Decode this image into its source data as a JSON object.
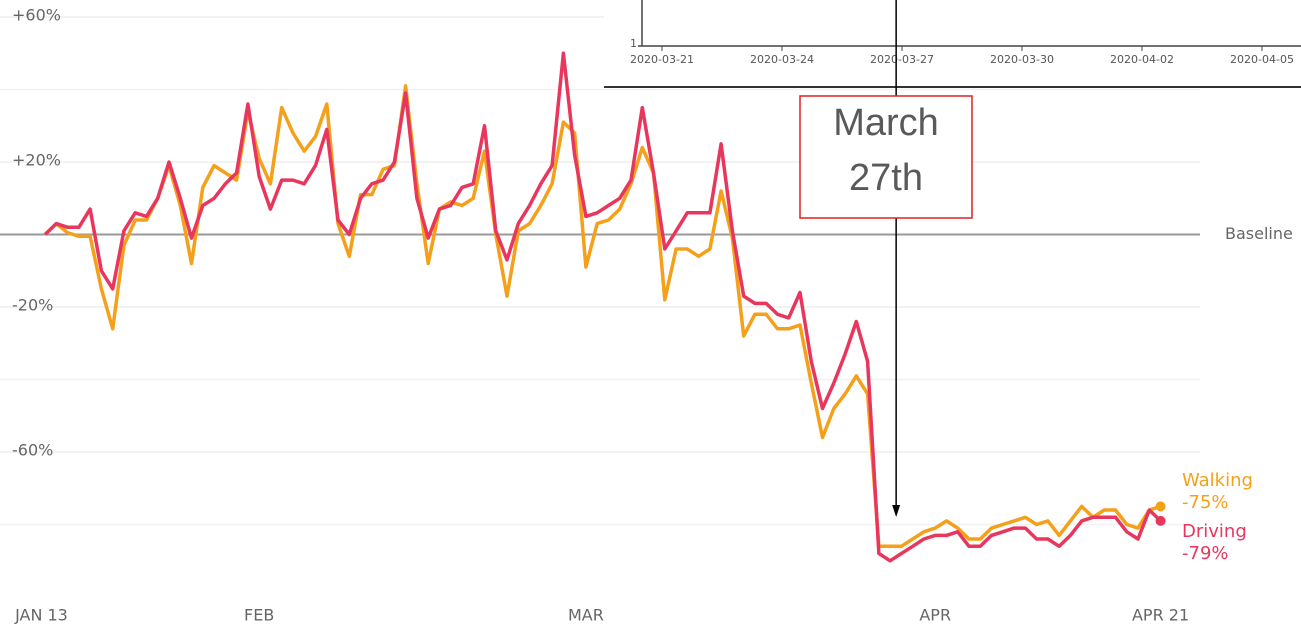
{
  "chart_data": {
    "type": "line",
    "x": [
      0,
      1,
      2,
      3,
      4,
      5,
      6,
      7,
      8,
      9,
      10,
      11,
      12,
      13,
      14,
      15,
      16,
      17,
      18,
      19,
      20,
      21,
      22,
      23,
      24,
      25,
      26,
      27,
      28,
      29,
      30,
      31,
      32,
      33,
      34,
      35,
      36,
      37,
      38,
      39,
      40,
      41,
      42,
      43,
      44,
      45,
      46,
      47,
      48,
      49,
      50,
      51,
      52,
      53,
      54,
      55,
      56,
      57,
      58,
      59,
      60,
      61,
      62,
      63,
      64,
      65,
      66,
      67,
      68,
      69,
      70,
      71,
      72,
      73,
      74,
      75,
      76,
      77,
      78,
      79,
      80,
      81,
      82,
      83,
      84,
      85,
      86,
      87,
      88,
      89,
      90,
      91,
      92,
      93,
      94,
      95,
      96,
      97,
      98,
      99
    ],
    "xlim": [
      -4,
      102.5
    ],
    "xticks": [
      {
        "value": 0,
        "label": "JAN 13"
      },
      {
        "value": 19,
        "label": "FEB"
      },
      {
        "value": 48,
        "label": "MAR"
      },
      {
        "value": 79,
        "label": "APR"
      },
      {
        "value": 99,
        "label": "APR 21"
      }
    ],
    "ylim": [
      -100,
      60
    ],
    "yticks": [
      {
        "value": 60,
        "label": "+60%"
      },
      {
        "value": 20,
        "label": "+20%"
      },
      {
        "value": -20,
        "label": "-20%"
      },
      {
        "value": -60,
        "label": "-60%"
      }
    ],
    "yminorticks": [
      40,
      -40,
      -80
    ],
    "baseline": {
      "value": 0,
      "label": "Baseline"
    },
    "grid": true,
    "series": [
      {
        "name": "Walking",
        "color": "#f5a01a",
        "values": [
          0,
          3,
          0.5,
          -0.5,
          -0.5,
          -15,
          -26,
          -3,
          4,
          4,
          10,
          19,
          8,
          -8,
          13,
          19,
          17,
          15,
          34,
          21,
          14,
          35,
          28,
          23,
          27,
          36,
          3,
          -6,
          11,
          11,
          18,
          19,
          41,
          14,
          -8,
          7,
          9,
          8,
          10,
          23,
          0,
          -17,
          1,
          3,
          8,
          14,
          31,
          28,
          -9,
          3,
          4,
          7,
          14,
          24,
          17,
          -18,
          -4,
          -4,
          -6,
          -4,
          12,
          -1,
          -28,
          -22,
          -22,
          -26,
          -26,
          -25,
          -41,
          -56,
          -48,
          -44,
          -39,
          -44,
          -86,
          -86,
          -86,
          -84,
          -82,
          -81,
          -79,
          -81,
          -84,
          -84,
          -81,
          -80,
          -79,
          -78,
          -80,
          -79,
          -83,
          -79,
          -75,
          -78,
          -76,
          -76,
          -80,
          -81,
          -76,
          -75
        ],
        "value_labels": [
          null,
          null,
          null,
          null,
          null,
          null,
          null,
          null,
          null,
          null,
          null,
          null,
          null,
          null,
          null,
          null,
          null,
          null,
          null,
          null,
          null,
          null,
          null,
          null,
          null,
          null,
          null,
          null,
          null,
          null,
          null,
          null,
          null,
          null,
          null,
          null,
          null,
          null,
          null,
          null,
          null,
          null,
          null,
          null,
          null,
          null,
          null,
          null,
          null,
          null,
          null,
          null,
          null,
          null,
          null,
          null,
          null,
          null,
          null,
          null,
          null,
          null,
          null,
          null,
          null,
          null,
          null,
          null,
          null,
          null,
          null,
          null,
          null,
          null,
          null,
          null,
          null,
          null,
          null,
          null,
          null,
          null,
          null,
          null,
          null,
          null,
          null,
          null,
          null,
          null,
          null,
          null,
          null,
          null,
          null,
          null,
          null,
          null,
          null,
          "-75%"
        ]
      },
      {
        "name": "Driving",
        "color": "#e8365d",
        "values": [
          0,
          3,
          2,
          2,
          7,
          -10,
          -15,
          1,
          6,
          5,
          10,
          20,
          10,
          -1,
          8,
          10,
          14,
          17,
          36,
          16,
          7,
          15,
          15,
          14,
          19,
          29,
          4,
          0,
          10,
          14,
          15,
          20,
          39,
          10,
          -1,
          7,
          8,
          13,
          14,
          30,
          1,
          -7,
          3,
          8,
          14,
          19,
          50,
          22,
          5,
          6,
          8,
          10,
          15,
          35,
          17,
          -4,
          1,
          6,
          6,
          6,
          25,
          1,
          -17,
          -19,
          -19,
          -22,
          -23,
          -16,
          -35,
          -48,
          -41,
          -33,
          -24,
          -35,
          -88,
          -90,
          -88,
          -86,
          -84,
          -83,
          -83,
          -82,
          -86,
          -86,
          -83,
          -82,
          -81,
          -81,
          -84,
          -84,
          -86,
          -83,
          -79,
          -78,
          -78,
          -78,
          -82,
          -84,
          -76,
          -79
        ],
        "value_labels": [
          null,
          null,
          null,
          null,
          null,
          null,
          null,
          null,
          null,
          null,
          null,
          null,
          null,
          null,
          null,
          null,
          null,
          null,
          null,
          null,
          null,
          null,
          null,
          null,
          null,
          null,
          null,
          null,
          null,
          null,
          null,
          null,
          null,
          null,
          null,
          null,
          null,
          null,
          null,
          null,
          null,
          null,
          null,
          null,
          null,
          null,
          null,
          null,
          null,
          null,
          null,
          null,
          null,
          null,
          null,
          null,
          null,
          null,
          null,
          null,
          null,
          null,
          null,
          null,
          null,
          null,
          null,
          null,
          null,
          null,
          null,
          null,
          null,
          null,
          null,
          null,
          null,
          null,
          null,
          null,
          null,
          null,
          null,
          null,
          null,
          null,
          null,
          null,
          null,
          null,
          null,
          null,
          null,
          null,
          null,
          null,
          null,
          null,
          null,
          "-79%"
        ]
      }
    ],
    "annotation": {
      "lines": [
        "March",
        "27th"
      ],
      "x": 75
    },
    "inset": {
      "y_tick": "1",
      "x_ticks": [
        "2020-03-21",
        "2020-03-24",
        "2020-03-27",
        "2020-03-30",
        "2020-04-02",
        "2020-04-05"
      ]
    }
  }
}
